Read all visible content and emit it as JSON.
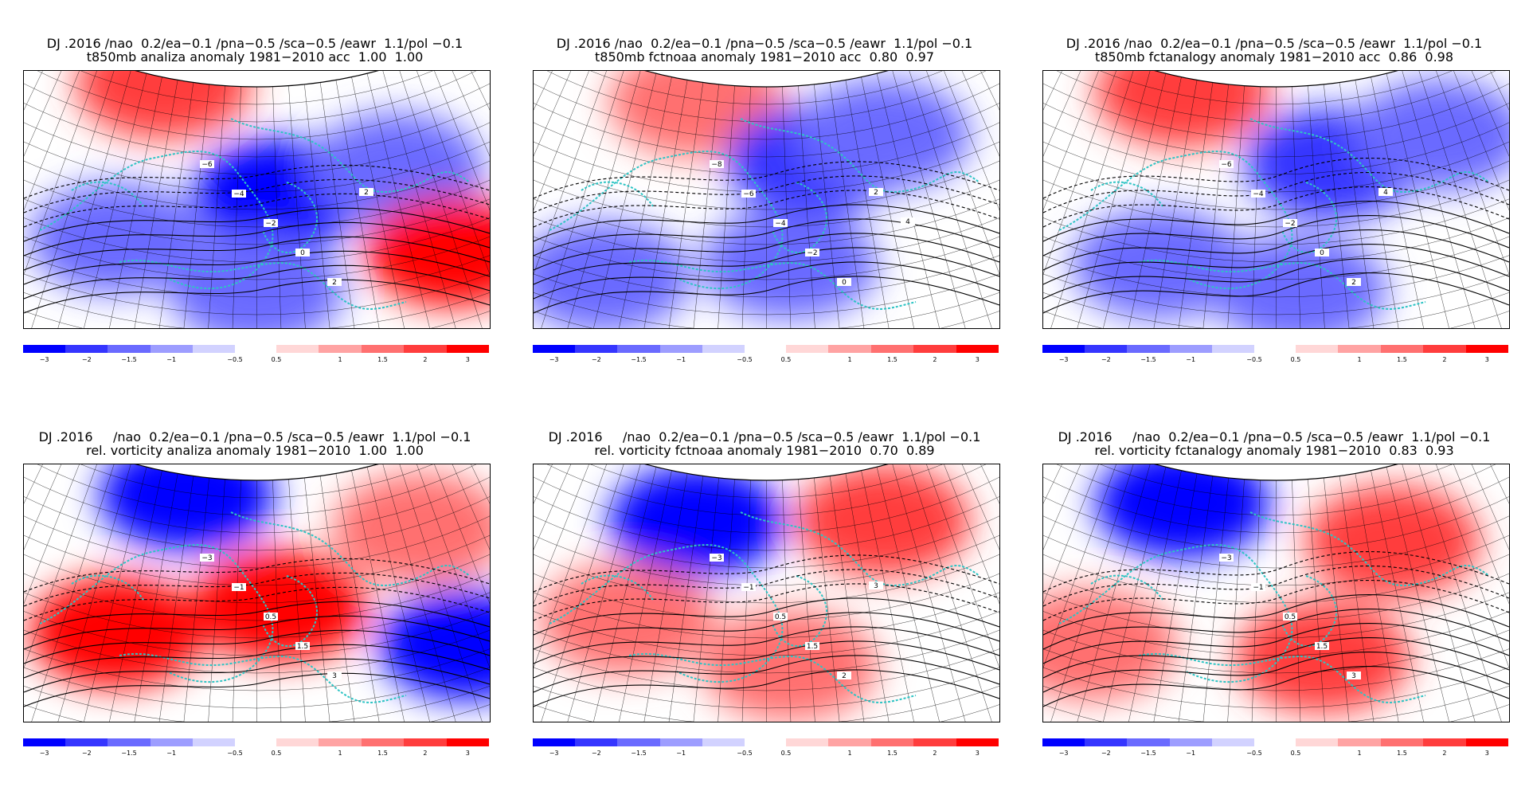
{
  "panels": [
    {
      "header": "DJ .2016 /nao  0.2/ea−0.1 /pna−0.5 /sca−0.5 /eawr  1.1/pol −0.1",
      "subtitle": "t850mb analiza anomaly 1981−2010 acc  1.00  1.00",
      "contour_labels": [
        "−6",
        "−4",
        "−2",
        "0",
        "2",
        "2"
      ]
    },
    {
      "header": "DJ .2016 /nao  0.2/ea−0.1 /pna−0.5 /sca−0.5 /eawr  1.1/pol −0.1",
      "subtitle": "t850mb fctnoaa anomaly 1981−2010 acc  0.80  0.97",
      "contour_labels": [
        "−8",
        "−6",
        "−4",
        "−2",
        "0",
        "2",
        "4"
      ]
    },
    {
      "header": "DJ .2016 /nao  0.2/ea−0.1 /pna−0.5 /sca−0.5 /eawr  1.1/pol −0.1",
      "subtitle": "t850mb fctanalogy anomaly 1981−2010 acc  0.86  0.98",
      "contour_labels": [
        "−6",
        "−4",
        "−2",
        "0",
        "2",
        "4"
      ]
    },
    {
      "header": "DJ .2016     /nao  0.2/ea−0.1 /pna−0.5 /sca−0.5 /eawr  1.1/pol −0.1",
      "subtitle": "rel. vorticity analiza anomaly 1981−2010  1.00  1.00",
      "contour_labels": [
        "−3",
        "−1",
        "0.5",
        "1.5",
        "3"
      ]
    },
    {
      "header": "DJ .2016     /nao  0.2/ea−0.1 /pna−0.5 /sca−0.5 /eawr  1.1/pol −0.1",
      "subtitle": "rel. vorticity fctnoaa anomaly 1981−2010  0.70  0.89",
      "contour_labels": [
        "−3",
        "−1",
        "0.5",
        "1.5",
        "2",
        "3"
      ]
    },
    {
      "header": "DJ .2016     /nao  0.2/ea−0.1 /pna−0.5 /sca−0.5 /eawr  1.1/pol −0.1",
      "subtitle": "rel. vorticity fctanalogy anomaly 1981−2010  0.83  0.93",
      "contour_labels": [
        "−3",
        "−1",
        "0.5",
        "1.5",
        "3"
      ]
    }
  ],
  "colorbar": {
    "negative": {
      "colors": [
        "#0000ff",
        "#3535ff",
        "#6a6aff",
        "#9d9dff",
        "#d2d2ff"
      ],
      "labels": [
        "−3",
        "−2",
        "−1.5",
        "−1",
        "−0.5"
      ]
    },
    "positive": {
      "colors": [
        "#ffd7d7",
        "#ffa3a3",
        "#ff7070",
        "#ff3d3d",
        "#ff0000"
      ],
      "labels": [
        "0.5",
        "1",
        "1.5",
        "2",
        "3"
      ]
    }
  },
  "map_colors": {
    "coastline": "#2ec4c4",
    "grid": "#000000",
    "contour": "#000000"
  },
  "anomaly_blobs": [
    [
      [
        0.3,
        0.05,
        "pos",
        2
      ],
      [
        0.55,
        0.48,
        "neg",
        3
      ],
      [
        0.2,
        0.65,
        "neg",
        1
      ],
      [
        0.8,
        0.38,
        "neg",
        1
      ],
      [
        0.92,
        0.7,
        "pos",
        3
      ],
      [
        0.5,
        0.85,
        "neg",
        1
      ]
    ],
    [
      [
        0.35,
        0.12,
        "pos",
        1
      ],
      [
        0.6,
        0.35,
        "neg",
        2
      ],
      [
        0.75,
        0.25,
        "neg",
        1
      ],
      [
        0.15,
        0.8,
        "neg",
        1
      ],
      [
        0.55,
        0.75,
        "neg",
        1
      ]
    ],
    [
      [
        0.3,
        0.08,
        "pos",
        2
      ],
      [
        0.62,
        0.36,
        "neg",
        2
      ],
      [
        0.25,
        0.75,
        "neg",
        1
      ],
      [
        0.55,
        0.85,
        "neg",
        1
      ],
      [
        0.85,
        0.25,
        "neg",
        1
      ]
    ],
    [
      [
        0.35,
        0.12,
        "neg",
        3
      ],
      [
        0.2,
        0.65,
        "pos",
        3
      ],
      [
        0.55,
        0.55,
        "pos",
        3
      ],
      [
        0.85,
        0.25,
        "pos",
        1
      ],
      [
        0.95,
        0.7,
        "neg",
        3
      ]
    ],
    [
      [
        0.35,
        0.22,
        "neg",
        3
      ],
      [
        0.75,
        0.22,
        "pos",
        2
      ],
      [
        0.55,
        0.78,
        "pos",
        1
      ],
      [
        0.2,
        0.6,
        "pos",
        1
      ]
    ],
    [
      [
        0.3,
        0.15,
        "neg",
        3
      ],
      [
        0.75,
        0.3,
        "pos",
        2
      ],
      [
        0.6,
        0.75,
        "pos",
        2
      ],
      [
        0.1,
        0.7,
        "pos",
        1
      ]
    ]
  ]
}
